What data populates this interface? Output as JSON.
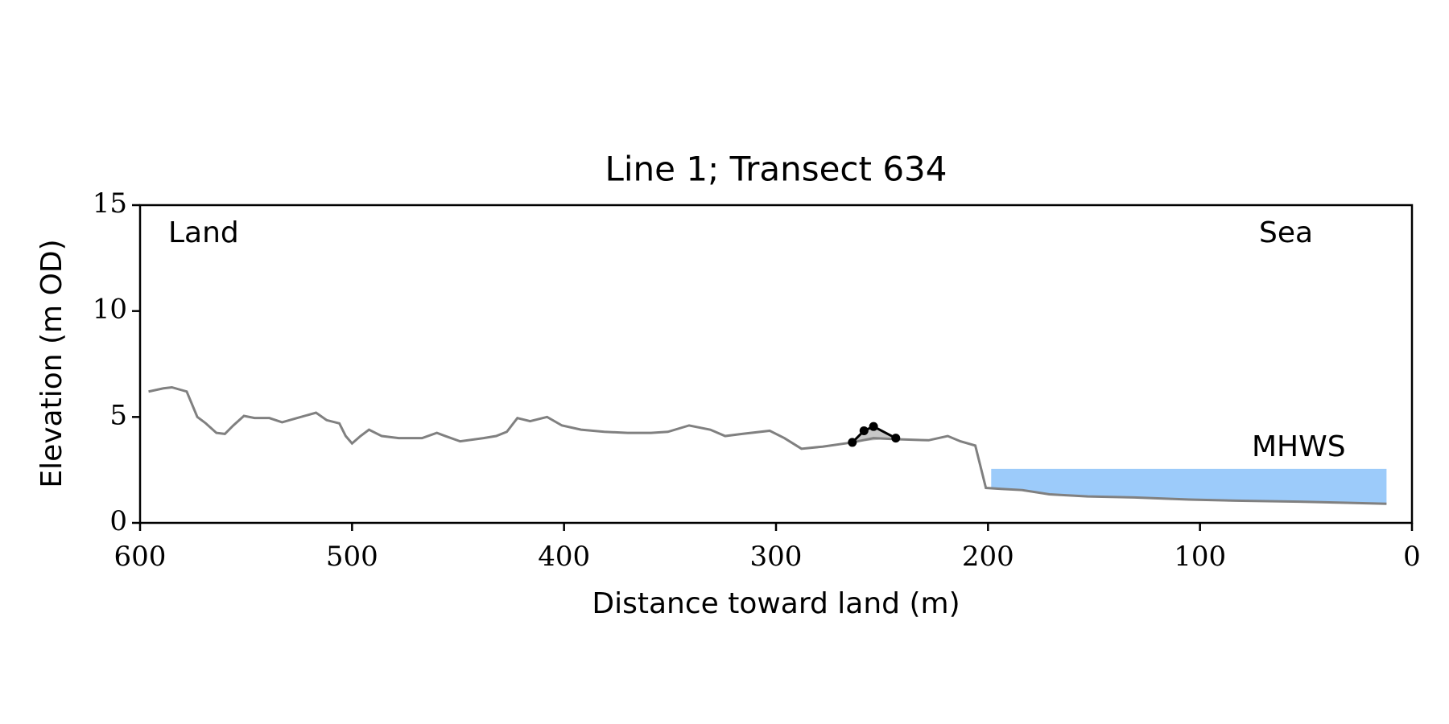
{
  "chart_data": {
    "type": "line",
    "title": "Line 1; Transect 634",
    "xlabel": "Distance toward land (m)",
    "ylabel": "Elevation (m OD)",
    "xlim": [
      600,
      0
    ],
    "ylim": [
      0,
      15
    ],
    "xticks": [
      600,
      500,
      400,
      300,
      200,
      100,
      0
    ],
    "yticks": [
      0,
      5,
      10,
      15
    ],
    "annotations": [
      "Land",
      "Sea"
    ],
    "profile": {
      "color": "#808080",
      "x": [
        596,
        589,
        585,
        578,
        573,
        569,
        564,
        560,
        556,
        551,
        546,
        539,
        533,
        526,
        517,
        512,
        506,
        503,
        500,
        496,
        492,
        486,
        478,
        467,
        460,
        456,
        449,
        438,
        432,
        427,
        422,
        416,
        408,
        401,
        392,
        381,
        370,
        359,
        351,
        341,
        331,
        324,
        316,
        303,
        296,
        288,
        278,
        264,
        254,
        243,
        228,
        219,
        213,
        206,
        201,
        193,
        184,
        171,
        153,
        131,
        105,
        83,
        53,
        31,
        12
      ],
      "values": [
        6.2,
        6.35,
        6.4,
        6.2,
        5.0,
        4.7,
        4.25,
        4.2,
        4.6,
        5.05,
        4.95,
        4.95,
        4.75,
        4.95,
        5.2,
        4.85,
        4.7,
        4.1,
        3.75,
        4.1,
        4.4,
        4.1,
        4.0,
        4.0,
        4.25,
        4.1,
        3.85,
        4.0,
        4.1,
        4.3,
        4.95,
        4.8,
        5.0,
        4.6,
        4.4,
        4.3,
        4.25,
        4.25,
        4.3,
        4.6,
        4.4,
        4.1,
        4.2,
        4.35,
        4.0,
        3.5,
        3.6,
        3.8,
        4.0,
        3.95,
        3.9,
        4.1,
        3.85,
        3.65,
        1.65,
        1.6,
        1.55,
        1.35,
        1.25,
        1.2,
        1.1,
        1.05,
        1.0,
        0.95,
        0.9
      ]
    },
    "dune": {
      "color": "#000000",
      "x": [
        264,
        258.5,
        254,
        243.5
      ],
      "values": [
        3.8,
        4.35,
        4.55,
        4.0
      ]
    },
    "mhws": {
      "label": "MHWS",
      "value": 2.55,
      "x": [
        198.5,
        12
      ],
      "color": "#9ccbfa",
      "label_color": "#6a9ac8"
    }
  }
}
